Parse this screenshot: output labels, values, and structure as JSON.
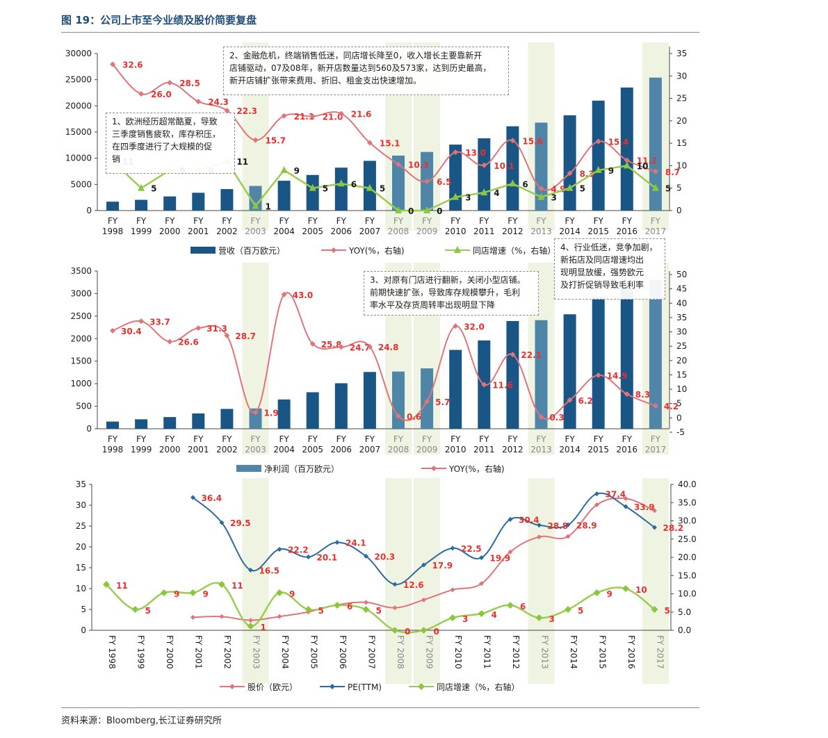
{
  "page": {
    "title": "图 19：公司上市至今业绩及股价简要复盘",
    "source": "资料来源：Bloomberg,长江证券研究所"
  },
  "colors": {
    "bar_dark": "#1a5685",
    "bar_light": "#4f86a8",
    "pink": "#e07478",
    "green": "#9acd4f",
    "green_marker": "#8cc63f",
    "blue_line": "#2c6a9e",
    "highlight": "#eef3e2",
    "label_red": "#e8302e",
    "label_dark": "#1a1a1a"
  },
  "icons": [
    "legend-bar-swatch",
    "legend-line-marker"
  ],
  "highlight_years": [
    "2003",
    "2008",
    "2009",
    "2013",
    "2017"
  ],
  "notes": [
    {
      "text": "1、欧洲经历超常酷夏，导致\n三季度销售疲软，库存积压，\n在四季度进行了大规模的促\n销"
    },
    {
      "text": "2、金融危机，终端销售低迷，同店增长降至0，收入增长主要靠新开\n店铺驱动，07及08年，新开店数量达到560及573家，达到历史最高，\n新开店铺扩张带来费用、折旧、租金支出快速增加。"
    },
    {
      "text": "3、对原有门店进行翻新，关闭小型店铺。\n前期快速扩张，导致库存规模攀升，毛利\n率水平及存货周转率出现明显下降"
    },
    {
      "text": "4、行业低迷，竞争加剧，\n新拓店及同店增速均出\n现明显放缓，强势欧元\n及打折促销导致毛利率"
    }
  ],
  "chart_data": [
    {
      "type": "bar",
      "categories": [
        "FY\n1998",
        "FY\n1999",
        "FY\n2000",
        "FY\n2001",
        "FY\n2002",
        "FY\n2003",
        "FY\n2004",
        "FY\n2005",
        "FY\n2006",
        "FY\n2007",
        "FY\n2008",
        "FY\n2009",
        "FY\n2010",
        "FY\n2011",
        "FY\n2012",
        "FY\n2013",
        "FY\n2014",
        "FY\n2015",
        "FY\n2016",
        "FY\n2017"
      ],
      "series": [
        {
          "name": "营收（百万欧元）",
          "kind": "bar",
          "axis": "left",
          "values": [
            1700,
            2050,
            2700,
            3400,
            4100,
            4700,
            5700,
            6800,
            8200,
            9500,
            10500,
            11200,
            12600,
            13800,
            16100,
            16800,
            18200,
            21000,
            23500,
            25400
          ]
        },
        {
          "name": "YOY(%，右轴)",
          "kind": "line",
          "axis": "right",
          "values": [
            32.6,
            26.0,
            28.5,
            24.3,
            22.3,
            15.7,
            21.1,
            21.0,
            21.6,
            15.1,
            10.3,
            6.5,
            13.0,
            10.1,
            15.6,
            4.9,
            8.3,
            15.4,
            11.2,
            8.7
          ]
        },
        {
          "name": "同店增速（%，右轴）",
          "kind": "line",
          "axis": "right",
          "values": [
            11,
            5,
            9,
            9,
            11,
            1,
            9,
            5,
            6,
            5,
            0,
            0,
            3,
            4,
            6,
            3,
            5,
            9,
            10,
            5
          ]
        }
      ],
      "ylim_left": [
        0,
        30000
      ],
      "yticks_left": [
        0,
        5000,
        10000,
        15000,
        20000,
        25000,
        30000
      ],
      "ylim_right": [
        0,
        35
      ],
      "yticks_right": [
        0,
        5,
        10,
        15,
        20,
        25,
        30,
        35
      ],
      "xlabel": "",
      "ylabel": ""
    },
    {
      "type": "bar",
      "categories": [
        "FY\n1998",
        "FY\n1999",
        "FY\n2000",
        "FY\n2001",
        "FY\n2002",
        "FY\n2003",
        "FY\n2004",
        "FY\n2005",
        "FY\n2006",
        "FY\n2007",
        "FY\n2008",
        "FY\n2009",
        "FY\n2010",
        "FY\n2011",
        "FY\n2012",
        "FY\n2013",
        "FY\n2014",
        "FY\n2015",
        "FY\n2016",
        "FY\n2017"
      ],
      "series": [
        {
          "name": "净利润（百万欧元）",
          "kind": "bar",
          "axis": "left",
          "values": [
            160,
            210,
            260,
            340,
            440,
            450,
            650,
            810,
            1010,
            1260,
            1270,
            1340,
            1750,
            1960,
            2390,
            2410,
            2540,
            2930,
            3150,
            3310
          ]
        },
        {
          "name": "YOY(%，右轴)",
          "kind": "line",
          "axis": "right",
          "values": [
            30.4,
            33.7,
            26.6,
            31.3,
            28.7,
            1.9,
            43.0,
            25.8,
            24.7,
            24.8,
            0.6,
            5.7,
            32.0,
            11.6,
            22.1,
            0.3,
            6.2,
            14.9,
            8.3,
            4.2
          ]
        }
      ],
      "ylim_left": [
        0,
        3500
      ],
      "yticks_left": [
        0,
        500,
        1000,
        1500,
        2000,
        2500,
        3000,
        3500
      ],
      "ylim_right": [
        -5,
        50
      ],
      "yticks_right": [
        -5,
        0,
        5,
        10,
        15,
        20,
        25,
        30,
        35,
        40,
        45,
        50
      ],
      "xlabel": "",
      "ylabel": ""
    },
    {
      "type": "line",
      "categories": [
        "FY 1998",
        "FY 1999",
        "FY 2000",
        "FY 2001",
        "FY 2002",
        "FY 2003",
        "FY 2004",
        "FY 2005",
        "FY 2006",
        "FY 2007",
        "FY 2008",
        "FY 2009",
        "FY 2010",
        "FY 2011",
        "FY 2012",
        "FY 2013",
        "FY 2014",
        "FY 2015",
        "FY 2016",
        "FY 2017"
      ],
      "series": [
        {
          "name": "股价（欧元）",
          "axis": "left",
          "show_labels": false,
          "values": [
            null,
            null,
            null,
            3.1,
            3.3,
            2.4,
            3.3,
            4.4,
            6.1,
            6.7,
            5.4,
            7.3,
            9.7,
            11.2,
            18.8,
            22.4,
            22.5,
            30.1,
            31.6,
            28.7
          ]
        },
        {
          "name": "PE(TTM)",
          "axis": "right",
          "values": [
            null,
            null,
            null,
            36.4,
            29.5,
            16.5,
            22.2,
            20.1,
            24.1,
            20.3,
            12.6,
            17.9,
            22.5,
            19.9,
            30.4,
            28.8,
            28.9,
            37.4,
            33.9,
            28.2
          ]
        },
        {
          "name": "同店增速（%，右轴）",
          "axis": "left",
          "values": [
            11,
            5,
            9,
            9,
            11,
            1,
            9,
            5,
            6,
            5,
            0,
            0,
            3,
            4,
            6,
            3,
            5,
            9,
            10,
            5
          ]
        }
      ],
      "ylim_left": [
        0,
        35
      ],
      "yticks_left": [
        0,
        5,
        10,
        15,
        20,
        25,
        30,
        35
      ],
      "ylim_right": [
        0,
        40
      ],
      "yticks_right": [
        "0.0",
        "5.0",
        "10.0",
        "15.0",
        "20.0",
        "25.0",
        "30.0",
        "35.0",
        "40.0"
      ],
      "xlabel": "",
      "ylabel": ""
    }
  ]
}
